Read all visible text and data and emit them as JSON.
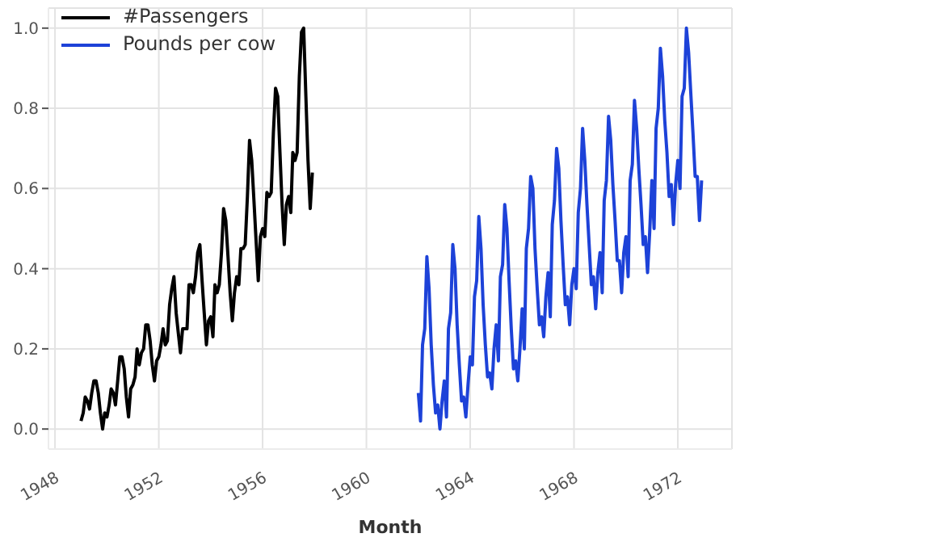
{
  "chart_data": {
    "type": "line",
    "xlabel": "Month",
    "legend": "top left",
    "grid": true,
    "xlim": [
      "1947-10",
      "1974-02"
    ],
    "xticks": [
      "1948",
      "1952",
      "1956",
      "1960",
      "1964",
      "1968",
      "1972"
    ],
    "ylim": [
      -0.05,
      1.05
    ],
    "yticks": [
      {
        "value": 0,
        "label": "0.0"
      },
      {
        "value": 0.2,
        "label": "0.2"
      },
      {
        "value": 0.4,
        "label": "0.4"
      },
      {
        "value": 0.6,
        "label": "0.6"
      },
      {
        "value": 0.8,
        "label": "0.8"
      },
      {
        "value": 1,
        "label": "1.0"
      }
    ],
    "series": [
      {
        "name": "#Passengers",
        "color": "#000000",
        "x": [
          "1949-01",
          "1949-02",
          "1949-03",
          "1949-04",
          "1949-05",
          "1949-06",
          "1949-07",
          "1949-08",
          "1949-09",
          "1949-10",
          "1949-11",
          "1949-12",
          "1950-01",
          "1950-02",
          "1950-03",
          "1950-04",
          "1950-05",
          "1950-06",
          "1950-07",
          "1950-08",
          "1950-09",
          "1950-10",
          "1950-11",
          "1950-12",
          "1951-01",
          "1951-02",
          "1951-03",
          "1951-04",
          "1951-05",
          "1951-06",
          "1951-07",
          "1951-08",
          "1951-09",
          "1951-10",
          "1951-11",
          "1951-12",
          "1952-01",
          "1952-02",
          "1952-03",
          "1952-04",
          "1952-05",
          "1952-06",
          "1952-07",
          "1952-08",
          "1952-09",
          "1952-10",
          "1952-11",
          "1952-12",
          "1953-01",
          "1953-02",
          "1953-03",
          "1953-04",
          "1953-05",
          "1953-06",
          "1953-07",
          "1953-08",
          "1953-09",
          "1953-10",
          "1953-11",
          "1953-12",
          "1954-01",
          "1954-02",
          "1954-03",
          "1954-04",
          "1954-05",
          "1954-06",
          "1954-07",
          "1954-08",
          "1954-09",
          "1954-10",
          "1954-11",
          "1954-12",
          "1955-01",
          "1955-02",
          "1955-03",
          "1955-04",
          "1955-05",
          "1955-06",
          "1955-07",
          "1955-08",
          "1955-09",
          "1955-10",
          "1955-11",
          "1955-12",
          "1956-01",
          "1956-02",
          "1956-03",
          "1956-04",
          "1956-05",
          "1956-06",
          "1956-07",
          "1956-08",
          "1956-09",
          "1956-10",
          "1956-11",
          "1956-12",
          "1957-01",
          "1957-02",
          "1957-03",
          "1957-04",
          "1957-05",
          "1957-06",
          "1957-07",
          "1957-08",
          "1957-09",
          "1957-10",
          "1957-11",
          "1957-12"
        ],
        "values": [
          0.02,
          0.04,
          0.08,
          0.07,
          0.05,
          0.09,
          0.12,
          0.12,
          0.09,
          0.04,
          0,
          0.04,
          0.03,
          0.06,
          0.1,
          0.09,
          0.06,
          0.12,
          0.18,
          0.18,
          0.15,
          0.08,
          0.03,
          0.1,
          0.11,
          0.13,
          0.2,
          0.16,
          0.19,
          0.2,
          0.26,
          0.26,
          0.22,
          0.16,
          0.12,
          0.17,
          0.18,
          0.21,
          0.25,
          0.21,
          0.22,
          0.31,
          0.35,
          0.38,
          0.29,
          0.24,
          0.19,
          0.25,
          0.25,
          0.25,
          0.36,
          0.36,
          0.34,
          0.38,
          0.44,
          0.46,
          0.37,
          0.29,
          0.21,
          0.27,
          0.28,
          0.23,
          0.36,
          0.34,
          0.36,
          0.44,
          0.55,
          0.52,
          0.43,
          0.34,
          0.27,
          0.34,
          0.38,
          0.36,
          0.45,
          0.45,
          0.46,
          0.58,
          0.72,
          0.67,
          0.57,
          0.47,
          0.37,
          0.48,
          0.5,
          0.48,
          0.59,
          0.58,
          0.59,
          0.74,
          0.85,
          0.83,
          0.69,
          0.56,
          0.46,
          0.56,
          0.58,
          0.54,
          0.69,
          0.67,
          0.69,
          0.88,
          0.99,
          1.0,
          0.83,
          0.67,
          0.55,
          0.64
        ]
      },
      {
        "name": "Pounds per cow",
        "color": "#1d42d8",
        "x": [
          "1962-01",
          "1962-02",
          "1962-03",
          "1962-04",
          "1962-05",
          "1962-06",
          "1962-07",
          "1962-08",
          "1962-09",
          "1962-10",
          "1962-11",
          "1962-12",
          "1963-01",
          "1963-02",
          "1963-03",
          "1963-04",
          "1963-05",
          "1963-06",
          "1963-07",
          "1963-08",
          "1963-09",
          "1963-10",
          "1963-11",
          "1963-12",
          "1964-01",
          "1964-02",
          "1964-03",
          "1964-04",
          "1964-05",
          "1964-06",
          "1964-07",
          "1964-08",
          "1964-09",
          "1964-10",
          "1964-11",
          "1964-12",
          "1965-01",
          "1965-02",
          "1965-03",
          "1965-04",
          "1965-05",
          "1965-06",
          "1965-07",
          "1965-08",
          "1965-09",
          "1965-10",
          "1965-11",
          "1965-12",
          "1966-01",
          "1966-02",
          "1966-03",
          "1966-04",
          "1966-05",
          "1966-06",
          "1966-07",
          "1966-08",
          "1966-09",
          "1966-10",
          "1966-11",
          "1966-12",
          "1967-01",
          "1967-02",
          "1967-03",
          "1967-04",
          "1967-05",
          "1967-06",
          "1967-07",
          "1967-08",
          "1967-09",
          "1967-10",
          "1967-11",
          "1967-12",
          "1968-01",
          "1968-02",
          "1968-03",
          "1968-04",
          "1968-05",
          "1968-06",
          "1968-07",
          "1968-08",
          "1968-09",
          "1968-10",
          "1968-11",
          "1968-12",
          "1969-01",
          "1969-02",
          "1969-03",
          "1969-04",
          "1969-05",
          "1969-06",
          "1969-07",
          "1969-08",
          "1969-09",
          "1969-10",
          "1969-11",
          "1969-12",
          "1970-01",
          "1970-02",
          "1970-03",
          "1970-04",
          "1970-05",
          "1970-06",
          "1970-07",
          "1970-08",
          "1970-09",
          "1970-10",
          "1970-11",
          "1970-12",
          "1971-01",
          "1971-02",
          "1971-03",
          "1971-04",
          "1971-05",
          "1971-06",
          "1971-07",
          "1971-08",
          "1971-09",
          "1971-10",
          "1971-11",
          "1971-12",
          "1972-01",
          "1972-02",
          "1972-03",
          "1972-04",
          "1972-05",
          "1972-06",
          "1972-07",
          "1972-08",
          "1972-09",
          "1972-10",
          "1972-11",
          "1972-12"
        ],
        "values": [
          0.09,
          0.02,
          0.21,
          0.25,
          0.43,
          0.35,
          0.21,
          0.11,
          0.04,
          0.06,
          0,
          0.07,
          0.12,
          0.03,
          0.25,
          0.29,
          0.46,
          0.4,
          0.26,
          0.16,
          0.07,
          0.08,
          0.03,
          0.11,
          0.18,
          0.16,
          0.33,
          0.37,
          0.53,
          0.45,
          0.31,
          0.21,
          0.13,
          0.14,
          0.1,
          0.2,
          0.26,
          0.17,
          0.38,
          0.41,
          0.56,
          0.5,
          0.37,
          0.25,
          0.15,
          0.17,
          0.12,
          0.2,
          0.3,
          0.2,
          0.45,
          0.5,
          0.63,
          0.6,
          0.45,
          0.35,
          0.26,
          0.28,
          0.23,
          0.33,
          0.39,
          0.28,
          0.51,
          0.57,
          0.7,
          0.65,
          0.52,
          0.41,
          0.31,
          0.33,
          0.26,
          0.36,
          0.4,
          0.35,
          0.54,
          0.6,
          0.75,
          0.67,
          0.56,
          0.46,
          0.36,
          0.38,
          0.3,
          0.39,
          0.44,
          0.34,
          0.57,
          0.62,
          0.78,
          0.72,
          0.61,
          0.52,
          0.42,
          0.42,
          0.34,
          0.44,
          0.48,
          0.38,
          0.62,
          0.66,
          0.82,
          0.75,
          0.65,
          0.56,
          0.46,
          0.48,
          0.39,
          0.49,
          0.62,
          0.5,
          0.75,
          0.8,
          0.95,
          0.88,
          0.77,
          0.69,
          0.58,
          0.61,
          0.51,
          0.61,
          0.67,
          0.6,
          0.83,
          0.85,
          1.0,
          0.94,
          0.84,
          0.74,
          0.63,
          0.63,
          0.52,
          0.62
        ]
      }
    ]
  }
}
